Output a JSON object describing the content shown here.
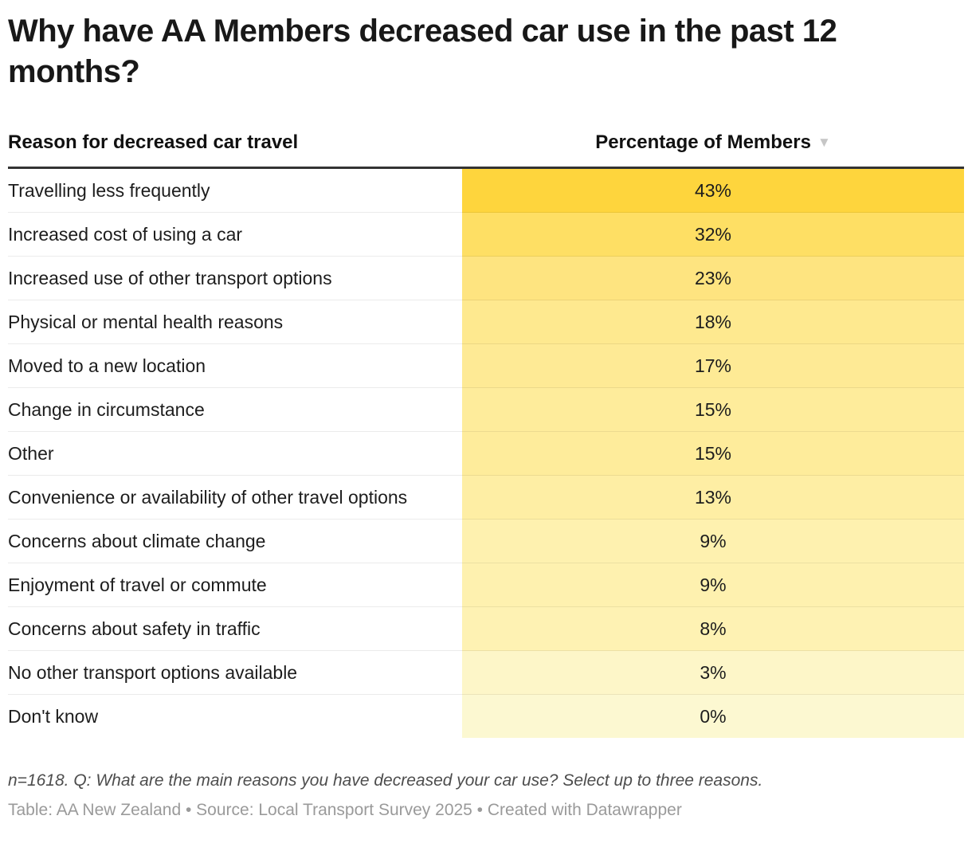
{
  "title": "Why have AA Members decreased car use in the past 12 months?",
  "table": {
    "columns": [
      {
        "label": "Reason for decreased car travel"
      },
      {
        "label": "Percentage of Members",
        "sort_icon": "▼",
        "sort_state": "descending"
      }
    ],
    "rows": [
      {
        "reason": "Travelling less frequently",
        "value": "43%",
        "color": "#FED53D"
      },
      {
        "reason": "Increased cost of using a car",
        "value": "32%",
        "color": "#FEDF64"
      },
      {
        "reason": "Increased use of other transport options",
        "value": "23%",
        "color": "#FEE480"
      },
      {
        "reason": "Physical or mental health reasons",
        "value": "18%",
        "color": "#FEE98F"
      },
      {
        "reason": "Moved to a new location",
        "value": "17%",
        "color": "#FEEA95"
      },
      {
        "reason": "Change in circumstance",
        "value": "15%",
        "color": "#FEEC9B"
      },
      {
        "reason": "Other",
        "value": "15%",
        "color": "#FEEC9B"
      },
      {
        "reason": "Convenience or availability of other travel options",
        "value": "13%",
        "color": "#FEEEA4"
      },
      {
        "reason": "Concerns about climate change",
        "value": "9%",
        "color": "#FEF1AF"
      },
      {
        "reason": "Enjoyment of travel or commute",
        "value": "9%",
        "color": "#FEF1AF"
      },
      {
        "reason": "Concerns about safety in traffic",
        "value": "8%",
        "color": "#FEF2B3"
      },
      {
        "reason": "No other transport options available",
        "value": "3%",
        "color": "#FDF6C8"
      },
      {
        "reason": "Don't know",
        "value": "0%",
        "color": "#FCF8D1"
      }
    ]
  },
  "footnote": "n=1618. Q: What are the main reasons you have decreased your car use? Select up to three reasons.",
  "source": "Table: AA New Zealand • Source: Local Transport Survey 2025 • Created with Datawrapper",
  "colors": {
    "top_rule": "#333333",
    "sort_arrow": "#C6C6C6",
    "heatmap_min": "#FCF8D1",
    "heatmap_max": "#FED53D",
    "row_separator_white": "#EBEBEB"
  },
  "chart_data": {
    "type": "table",
    "title": "Why have AA Members decreased car use in the past 12 months?",
    "columns": [
      "Reason for decreased car travel",
      "Percentage of Members"
    ],
    "categories": [
      "Travelling less frequently",
      "Increased cost of using a car",
      "Increased use of other transport options",
      "Physical or mental health reasons",
      "Moved to a new location",
      "Change in circumstance",
      "Other",
      "Convenience or availability of other travel options",
      "Concerns about climate change",
      "Enjoyment of travel or commute",
      "Concerns about safety in traffic",
      "No other transport options available",
      "Don't know"
    ],
    "values": [
      43,
      32,
      23,
      18,
      17,
      15,
      15,
      13,
      9,
      9,
      8,
      3,
      0
    ],
    "units": "%",
    "sort": "descending by Percentage of Members",
    "value_range": [
      0,
      43
    ],
    "style": "heatmap shading of value column from pale yellow (0%) to golden yellow (43%)"
  }
}
